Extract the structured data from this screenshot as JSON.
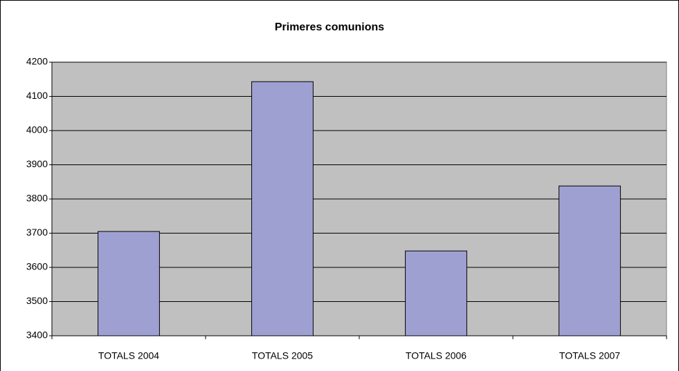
{
  "chart_data": {
    "type": "bar",
    "title": "Primeres comunions",
    "categories": [
      "TOTALS 2004",
      "TOTALS 2005",
      "TOTALS 2006",
      "TOTALS 2007"
    ],
    "values": [
      3705,
      4143,
      3648,
      3838
    ],
    "color": "#9fa0d2",
    "ylim": [
      3400,
      4200
    ],
    "yticks": [
      3400,
      3500,
      3600,
      3700,
      3800,
      3900,
      4000,
      4100,
      4200
    ],
    "grid": true
  }
}
